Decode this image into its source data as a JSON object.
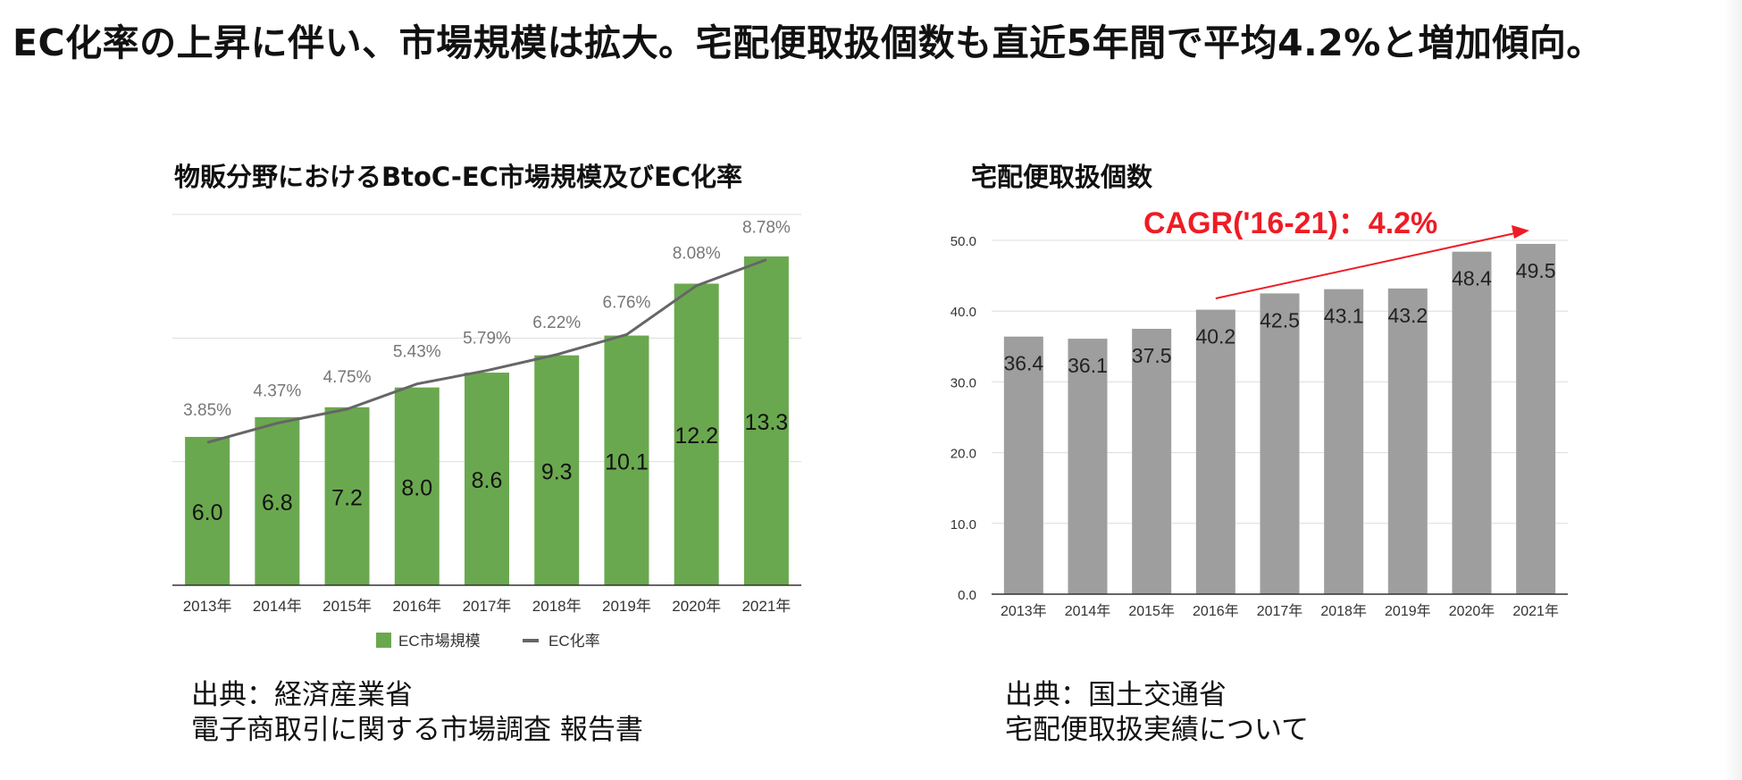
{
  "headline": "EC化率の上昇に伴い、市場規模は拡大。宅配便取扱個数も直近5年間で平均4.2%と増加傾向。",
  "colors": {
    "green": "#6aa84f",
    "line": "#666666",
    "gray": "#9e9e9e",
    "red": "#ee1c25",
    "grid": "#dddddd"
  },
  "chart_data": [
    {
      "type": "bar",
      "title": "物販分野におけるBtoC-EC市場規模及びEC化率",
      "categories": [
        "2013年",
        "2014年",
        "2015年",
        "2016年",
        "2017年",
        "2018年",
        "2019年",
        "2020年",
        "2021年"
      ],
      "series": [
        {
          "name": "EC市場規模",
          "type": "bar",
          "values": [
            6.0,
            6.8,
            7.2,
            8.0,
            8.6,
            9.3,
            10.1,
            12.2,
            13.3
          ],
          "labels": [
            "6.0",
            "6.8",
            "7.2",
            "8.0",
            "8.6",
            "9.3",
            "10.1",
            "12.2",
            "13.3"
          ]
        },
        {
          "name": "EC化率",
          "type": "line",
          "values": [
            3.85,
            4.37,
            4.75,
            5.43,
            5.79,
            6.22,
            6.76,
            8.08,
            8.78
          ],
          "labels": [
            "3.85%",
            "4.37%",
            "4.75%",
            "5.43%",
            "5.79%",
            "6.22%",
            "6.76%",
            "8.08%",
            "8.78%"
          ]
        }
      ],
      "ylim": [
        0,
        15
      ],
      "y2lim": [
        0,
        10
      ],
      "legend": [
        "EC市場規模",
        "EC化率"
      ],
      "legend_position": "bottom",
      "source": [
        "出典：経済産業省",
        "電子商取引に関する市場調査 報告書"
      ]
    },
    {
      "type": "bar",
      "title": "宅配便取扱個数",
      "categories": [
        "2013年",
        "2014年",
        "2015年",
        "2016年",
        "2017年",
        "2018年",
        "2019年",
        "2020年",
        "2021年"
      ],
      "values": [
        36.4,
        36.1,
        37.5,
        40.2,
        42.5,
        43.1,
        43.2,
        48.4,
        49.5
      ],
      "labels": [
        "36.4",
        "36.1",
        "37.5",
        "40.2",
        "42.5",
        "43.1",
        "43.2",
        "48.4",
        "49.5"
      ],
      "yticks": [
        "0.0",
        "10.0",
        "20.0",
        "30.0",
        "40.0",
        "50.0"
      ],
      "ylim": [
        0,
        50
      ],
      "annotation": "CAGR('16-21)：4.2%",
      "source": [
        "出典：国土交通省",
        "宅配便取扱実績について"
      ]
    }
  ]
}
